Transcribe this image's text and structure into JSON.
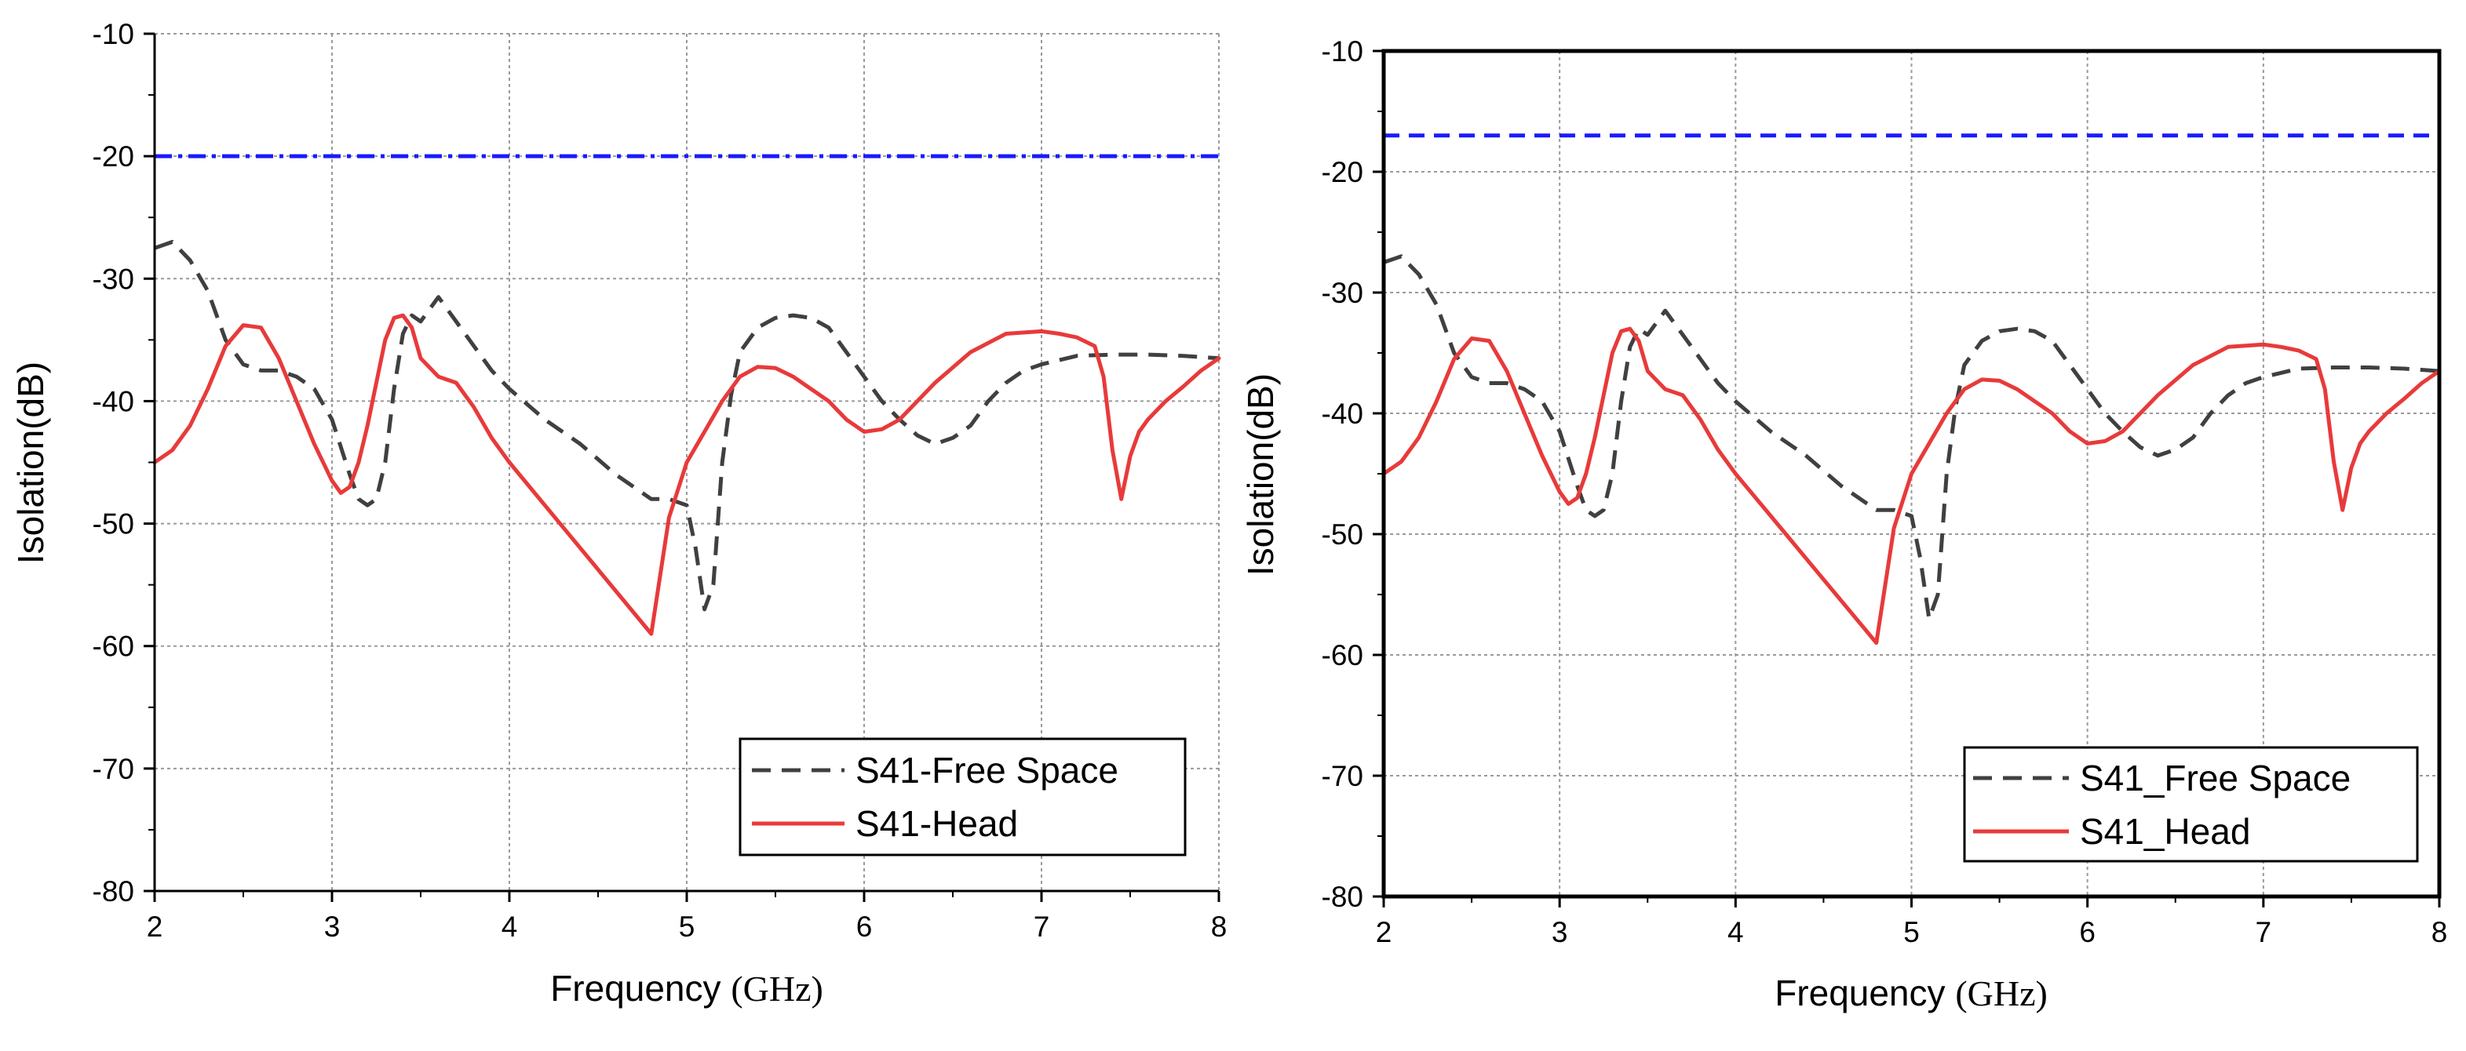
{
  "figure": {
    "background": "#ffffff"
  },
  "chart_data": [
    {
      "type": "line",
      "panel": "left",
      "title": "",
      "xlabel": "Frequency (GHz)",
      "xlabel_main": "Frequency ",
      "xlabel_unit": "(GHz)",
      "ylabel": "Isolation(dB)",
      "xlim": [
        2,
        8
      ],
      "ylim": [
        -80,
        -10
      ],
      "xticks": [
        2,
        3,
        4,
        5,
        6,
        7,
        8
      ],
      "yticks": [
        -10,
        -20,
        -30,
        -40,
        -50,
        -60,
        -70,
        -80
      ],
      "grid": true,
      "legend_position": "bottom-right",
      "reference_line": {
        "y": -20,
        "color": "#1a1aff",
        "style": "dash-dot"
      },
      "series": [
        {
          "name": "S41-Free Space",
          "color": "#404040",
          "style": "dashed",
          "x": [
            2.0,
            2.1,
            2.2,
            2.3,
            2.4,
            2.5,
            2.6,
            2.7,
            2.8,
            2.9,
            3.0,
            3.1,
            3.15,
            3.2,
            3.25,
            3.3,
            3.35,
            3.4,
            3.45,
            3.5,
            3.6,
            3.7,
            3.8,
            3.9,
            4.0,
            4.2,
            4.4,
            4.6,
            4.8,
            4.9,
            5.0,
            5.05,
            5.1,
            5.15,
            5.2,
            5.25,
            5.3,
            5.4,
            5.5,
            5.6,
            5.7,
            5.8,
            5.9,
            6.0,
            6.1,
            6.2,
            6.3,
            6.4,
            6.5,
            6.6,
            6.7,
            6.8,
            6.9,
            7.0,
            7.2,
            7.4,
            7.6,
            7.8,
            8.0
          ],
          "values": [
            -27.5,
            -27.0,
            -28.5,
            -31.0,
            -35.0,
            -37.0,
            -37.5,
            -37.5,
            -38.0,
            -39.0,
            -41.5,
            -46.0,
            -48.0,
            -48.5,
            -48.0,
            -45.0,
            -39.0,
            -34.5,
            -33.0,
            -33.5,
            -31.5,
            -33.5,
            -35.5,
            -37.5,
            -39.0,
            -41.5,
            -43.5,
            -46.0,
            -48.0,
            -48.0,
            -48.5,
            -52.0,
            -57.0,
            -55.0,
            -45.0,
            -39.5,
            -36.0,
            -34.0,
            -33.2,
            -33.0,
            -33.2,
            -34.0,
            -36.0,
            -38.0,
            -40.0,
            -41.5,
            -42.8,
            -43.5,
            -43.0,
            -42.0,
            -40.0,
            -38.5,
            -37.5,
            -37.0,
            -36.3,
            -36.2,
            -36.2,
            -36.3,
            -36.5
          ]
        },
        {
          "name": "S41-Head",
          "color": "#e83a3a",
          "style": "solid",
          "x": [
            2.0,
            2.1,
            2.2,
            2.3,
            2.4,
            2.5,
            2.6,
            2.7,
            2.8,
            2.9,
            3.0,
            3.05,
            3.1,
            3.15,
            3.2,
            3.25,
            3.3,
            3.35,
            3.4,
            3.45,
            3.5,
            3.6,
            3.7,
            3.8,
            3.9,
            4.0,
            4.2,
            4.4,
            4.6,
            4.8,
            4.9,
            5.0,
            5.1,
            5.2,
            5.3,
            5.4,
            5.5,
            5.6,
            5.7,
            5.8,
            5.9,
            6.0,
            6.1,
            6.2,
            6.4,
            6.6,
            6.8,
            7.0,
            7.1,
            7.2,
            7.3,
            7.35,
            7.4,
            7.45,
            7.5,
            7.55,
            7.6,
            7.7,
            7.8,
            7.9,
            8.0
          ],
          "values": [
            -45.0,
            -44.0,
            -42.0,
            -39.0,
            -35.5,
            -33.8,
            -34.0,
            -36.5,
            -40.0,
            -43.5,
            -46.5,
            -47.5,
            -47.0,
            -45.0,
            -42.0,
            -38.5,
            -35.0,
            -33.2,
            -33.0,
            -34.0,
            -36.5,
            -38.0,
            -38.5,
            -40.5,
            -43.0,
            -45.0,
            -48.5,
            -52.0,
            -55.5,
            -59.0,
            -49.5,
            -45.0,
            -42.5,
            -40.0,
            -38.0,
            -37.2,
            -37.3,
            -38.0,
            -39.0,
            -40.0,
            -41.5,
            -42.5,
            -42.3,
            -41.5,
            -38.5,
            -36.0,
            -34.5,
            -34.3,
            -34.5,
            -34.8,
            -35.5,
            -38.0,
            -44.0,
            -48.0,
            -44.5,
            -42.5,
            -41.5,
            -40.0,
            -38.8,
            -37.5,
            -36.5
          ]
        }
      ]
    },
    {
      "type": "line",
      "panel": "right",
      "title": "",
      "xlabel": "Frequency (GHz)",
      "xlabel_main": "Frequency ",
      "xlabel_unit": "(GHz)",
      "ylabel": "Isolation(dB)",
      "xlim": [
        2,
        8
      ],
      "ylim": [
        -80,
        -10
      ],
      "xticks": [
        2,
        3,
        4,
        5,
        6,
        7,
        8
      ],
      "yticks": [
        -10,
        -20,
        -30,
        -40,
        -50,
        -60,
        -70,
        -80
      ],
      "grid": true,
      "legend_position": "bottom-right",
      "reference_line": {
        "y": -17,
        "color": "#1a1aff",
        "style": "dashed"
      },
      "series": [
        {
          "name": "S41_Free Space",
          "color": "#404040",
          "style": "dashed",
          "x": [
            2.0,
            2.1,
            2.2,
            2.3,
            2.4,
            2.5,
            2.6,
            2.7,
            2.8,
            2.9,
            3.0,
            3.1,
            3.15,
            3.2,
            3.25,
            3.3,
            3.35,
            3.4,
            3.45,
            3.5,
            3.6,
            3.7,
            3.8,
            3.9,
            4.0,
            4.2,
            4.4,
            4.6,
            4.8,
            4.9,
            5.0,
            5.05,
            5.1,
            5.15,
            5.2,
            5.25,
            5.3,
            5.4,
            5.5,
            5.6,
            5.7,
            5.8,
            5.9,
            6.0,
            6.1,
            6.2,
            6.3,
            6.4,
            6.5,
            6.6,
            6.7,
            6.8,
            6.9,
            7.0,
            7.2,
            7.4,
            7.6,
            7.8,
            8.0
          ],
          "values": [
            -27.5,
            -27.0,
            -28.5,
            -31.0,
            -35.0,
            -37.0,
            -37.5,
            -37.5,
            -38.0,
            -39.0,
            -41.5,
            -46.0,
            -48.0,
            -48.5,
            -48.0,
            -45.0,
            -39.0,
            -34.5,
            -33.0,
            -33.5,
            -31.5,
            -33.5,
            -35.5,
            -37.5,
            -39.0,
            -41.5,
            -43.5,
            -46.0,
            -48.0,
            -48.0,
            -48.5,
            -52.0,
            -57.0,
            -55.0,
            -45.0,
            -39.5,
            -36.0,
            -34.0,
            -33.2,
            -33.0,
            -33.2,
            -34.0,
            -36.0,
            -38.0,
            -40.0,
            -41.5,
            -42.8,
            -43.5,
            -43.0,
            -42.0,
            -40.0,
            -38.5,
            -37.5,
            -37.0,
            -36.3,
            -36.2,
            -36.2,
            -36.3,
            -36.5
          ]
        },
        {
          "name": "S41_Head",
          "color": "#e83a3a",
          "style": "solid",
          "x": [
            2.0,
            2.1,
            2.2,
            2.3,
            2.4,
            2.5,
            2.6,
            2.7,
            2.8,
            2.9,
            3.0,
            3.05,
            3.1,
            3.15,
            3.2,
            3.25,
            3.3,
            3.35,
            3.4,
            3.45,
            3.5,
            3.6,
            3.7,
            3.8,
            3.9,
            4.0,
            4.2,
            4.4,
            4.6,
            4.8,
            4.9,
            5.0,
            5.1,
            5.2,
            5.3,
            5.4,
            5.5,
            5.6,
            5.7,
            5.8,
            5.9,
            6.0,
            6.1,
            6.2,
            6.4,
            6.6,
            6.8,
            7.0,
            7.1,
            7.2,
            7.3,
            7.35,
            7.4,
            7.45,
            7.5,
            7.55,
            7.6,
            7.7,
            7.8,
            7.9,
            8.0
          ],
          "values": [
            -45.0,
            -44.0,
            -42.0,
            -39.0,
            -35.5,
            -33.8,
            -34.0,
            -36.5,
            -40.0,
            -43.5,
            -46.5,
            -47.5,
            -47.0,
            -45.0,
            -42.0,
            -38.5,
            -35.0,
            -33.2,
            -33.0,
            -34.0,
            -36.5,
            -38.0,
            -38.5,
            -40.5,
            -43.0,
            -45.0,
            -48.5,
            -52.0,
            -55.5,
            -59.0,
            -49.5,
            -45.0,
            -42.5,
            -40.0,
            -38.0,
            -37.2,
            -37.3,
            -38.0,
            -39.0,
            -40.0,
            -41.5,
            -42.5,
            -42.3,
            -41.5,
            -38.5,
            -36.0,
            -34.5,
            -34.3,
            -34.5,
            -34.8,
            -35.5,
            -38.0,
            -44.0,
            -48.0,
            -44.5,
            -42.5,
            -41.5,
            -40.0,
            -38.8,
            -37.5,
            -36.5
          ]
        }
      ]
    }
  ]
}
